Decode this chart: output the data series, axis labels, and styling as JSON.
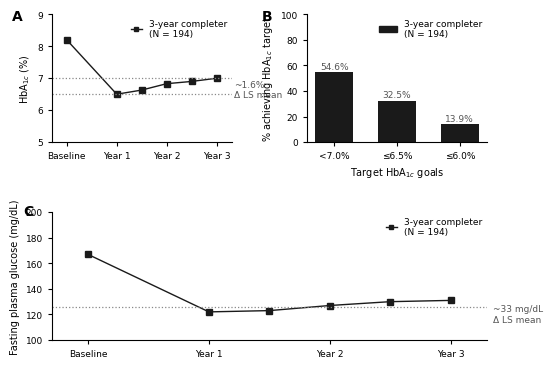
{
  "panel_A": {
    "x_labels": [
      "Baseline",
      "Year 1",
      "Year 2",
      "Year 3"
    ],
    "x_positions": [
      0,
      1,
      2,
      3
    ],
    "y_values": [
      8.2,
      6.5,
      6.68,
      6.88,
      6.98
    ],
    "x_pos_extra": [
      0,
      1,
      1.5,
      2,
      2.5,
      3
    ],
    "y_values_extra": [
      8.2,
      6.5,
      6.63,
      6.83,
      6.9,
      7.0
    ],
    "ylim": [
      5,
      9
    ],
    "yticks": [
      5,
      6,
      7,
      8,
      9
    ],
    "hline_7": 7.0,
    "hline_65": 6.5,
    "annotation": "~1.6%\nΔ LS mean",
    "legend_label": "3-year completer\n(N = 194)",
    "ylabel": "HbA$_{1c}$ (%)"
  },
  "panel_B": {
    "categories": [
      "<7.0%",
      "≤6.5%",
      "≤6.0%"
    ],
    "values": [
      54.6,
      32.5,
      13.9
    ],
    "bar_color": "#1a1a1a",
    "ylim": [
      0,
      100
    ],
    "yticks": [
      0,
      20,
      40,
      60,
      80,
      100
    ],
    "xlabel": "Target HbA$_{1c}$ goals",
    "ylabel": "% achieving HbA$_{1c}$ target",
    "legend_label": "3-year completer\n(N = 194)"
  },
  "panel_C": {
    "x_labels": [
      "Baseline",
      "Year 1",
      "Year 2",
      "Year 3"
    ],
    "x_pos_extra": [
      0,
      1,
      1.5,
      2,
      2.5,
      3
    ],
    "y_values_extra": [
      167,
      122,
      123,
      127,
      130,
      131
    ],
    "ylim": [
      100,
      200
    ],
    "yticks": [
      100,
      120,
      140,
      160,
      180,
      200
    ],
    "hline": 126,
    "annotation": "~33 mg/dL\nΔ LS mean",
    "legend_label": "3-year completer\n(N = 194)",
    "ylabel": "Fasting plasma glucose (mg/dL)"
  },
  "line_color": "#1a1a1a",
  "marker": "s",
  "marker_size": 4,
  "panel_label_fontsize": 10,
  "axis_fontsize": 7,
  "tick_fontsize": 6.5,
  "legend_fontsize": 6.5,
  "annotation_fontsize": 6.5,
  "bar_label_fontsize": 6.5
}
